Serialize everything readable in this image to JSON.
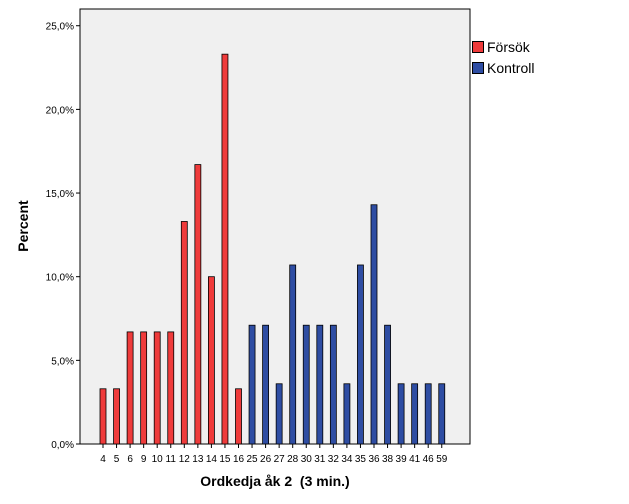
{
  "chart_data": {
    "type": "bar",
    "xlabel": "Ordkedja åk 2  (3 min.)",
    "ylabel": "Percent",
    "ylim": [
      0,
      26
    ],
    "yticks": [
      "0,0%",
      "5,0%",
      "10,0%",
      "15,0%",
      "20,0%",
      "25,0%"
    ],
    "ytick_values": [
      0,
      5,
      10,
      15,
      20,
      25
    ],
    "categories": [
      "4",
      "5",
      "6",
      "9",
      "10",
      "11",
      "12",
      "13",
      "14",
      "15",
      "16",
      "25",
      "26",
      "27",
      "28",
      "30",
      "31",
      "32",
      "34",
      "35",
      "36",
      "38",
      "39",
      "41",
      "46",
      "59"
    ],
    "series": [
      {
        "name": "Försök",
        "color": "#ef3b3b",
        "values": [
          3.3,
          3.3,
          6.7,
          6.7,
          6.7,
          6.7,
          13.3,
          16.7,
          10.0,
          23.3,
          3.3,
          null,
          null,
          null,
          null,
          null,
          null,
          null,
          null,
          null,
          null,
          null,
          null,
          null,
          null,
          null
        ]
      },
      {
        "name": "Kontroll",
        "color": "#2e4da3",
        "values": [
          null,
          null,
          null,
          null,
          null,
          null,
          null,
          null,
          null,
          null,
          null,
          7.1,
          7.1,
          3.6,
          10.7,
          7.1,
          7.1,
          7.1,
          3.6,
          10.7,
          14.3,
          7.1,
          3.6,
          3.6,
          3.6,
          3.6
        ]
      }
    ],
    "grid": false,
    "plot_background": "#f0f0f0",
    "legend_position": "right"
  }
}
